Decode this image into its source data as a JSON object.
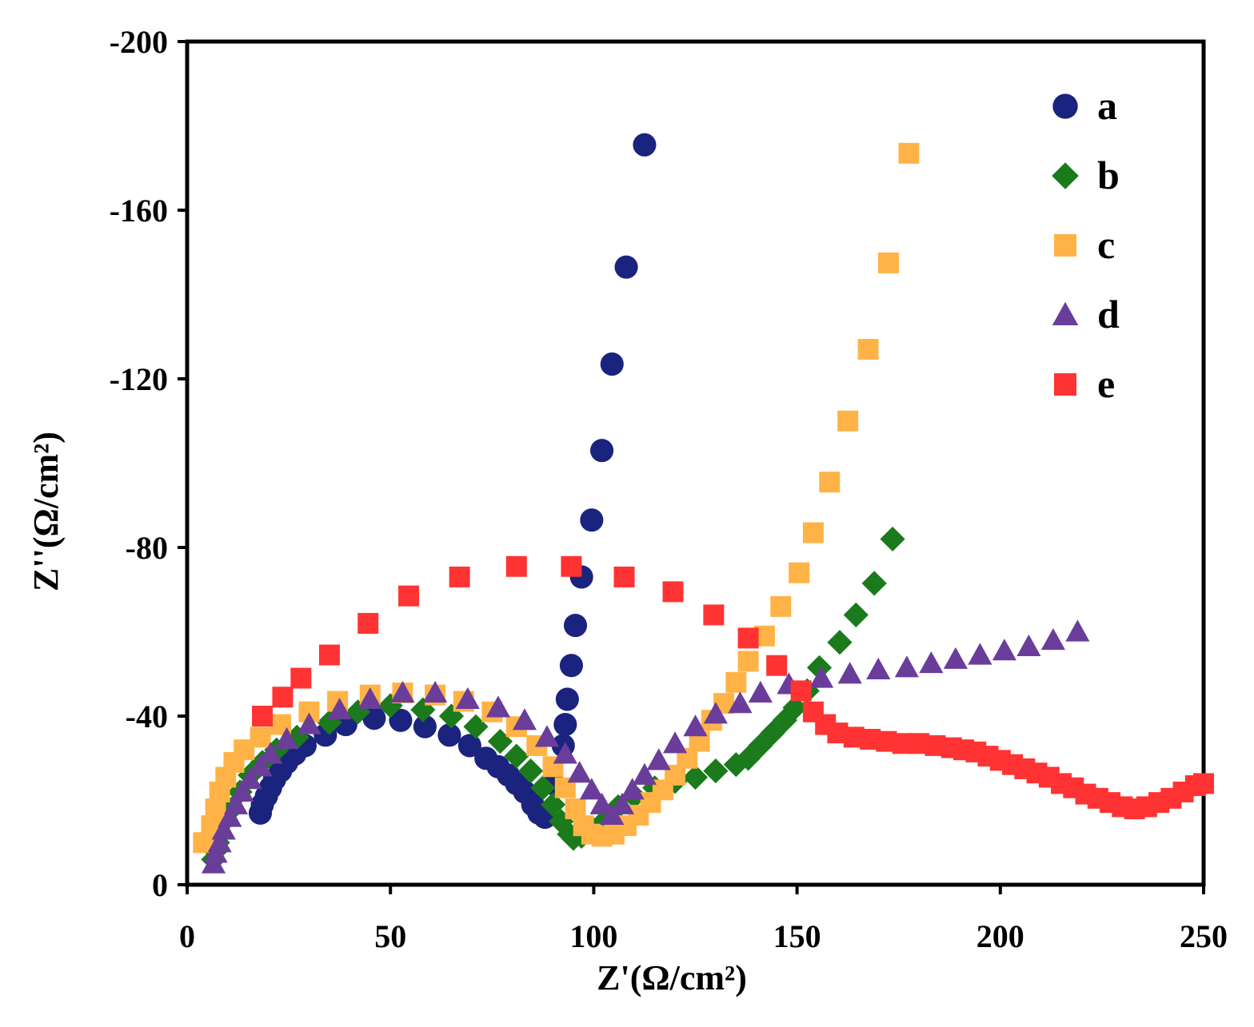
{
  "chart_data": {
    "type": "scatter",
    "title": "",
    "xlabel": "Z'(Ω/cm²)",
    "ylabel": "Z''(Ω/cm²)",
    "xlim": [
      0,
      250
    ],
    "ylim": [
      0,
      -200
    ],
    "xticks": [
      0,
      50,
      100,
      150,
      200,
      250
    ],
    "yticks": [
      0,
      -40,
      -80,
      -120,
      -160,
      -200
    ],
    "xtick_labels": [
      "0",
      "50",
      "100",
      "150",
      "200",
      "250"
    ],
    "ytick_labels": [
      "0",
      "-40",
      "-80",
      "-120",
      "-160",
      "-200"
    ],
    "grid": false,
    "legend_position": "top-right",
    "series": [
      {
        "name": "a",
        "marker": "circle",
        "color": "#1a237e",
        "points": [
          [
            18,
            -17
          ],
          [
            18.5,
            -19
          ],
          [
            19.5,
            -21
          ],
          [
            20.5,
            -23
          ],
          [
            21.5,
            -25
          ],
          [
            23,
            -27
          ],
          [
            24.5,
            -29
          ],
          [
            26.5,
            -31
          ],
          [
            29,
            -33
          ],
          [
            34,
            -35.5
          ],
          [
            39,
            -38
          ],
          [
            46,
            -39.5
          ],
          [
            52.5,
            -39
          ],
          [
            58.5,
            -37.5
          ],
          [
            64.5,
            -35.5
          ],
          [
            69.5,
            -33
          ],
          [
            73.5,
            -30
          ],
          [
            76.5,
            -28
          ],
          [
            79,
            -26
          ],
          [
            81,
            -24
          ],
          [
            83,
            -22
          ],
          [
            85,
            -19
          ],
          [
            86.5,
            -17
          ],
          [
            88,
            -16
          ],
          [
            90,
            -24
          ],
          [
            92.5,
            -33
          ],
          [
            93,
            -38
          ],
          [
            93.5,
            -44
          ],
          [
            94.5,
            -52
          ],
          [
            95.5,
            -61.5
          ],
          [
            97,
            -73
          ],
          [
            99.5,
            -86.5
          ],
          [
            102,
            -103
          ],
          [
            104.5,
            -123.5
          ],
          [
            108,
            -146.5
          ],
          [
            112.5,
            -175.5
          ]
        ]
      },
      {
        "name": "b",
        "marker": "diamond",
        "color": "#1b7a1b",
        "points": [
          [
            6.5,
            -6
          ],
          [
            7,
            -8
          ],
          [
            7.5,
            -10
          ],
          [
            8,
            -12
          ],
          [
            9,
            -15
          ],
          [
            11,
            -18
          ],
          [
            13,
            -22
          ],
          [
            15.5,
            -26
          ],
          [
            18.5,
            -29
          ],
          [
            22,
            -32
          ],
          [
            27,
            -35
          ],
          [
            35,
            -38.5
          ],
          [
            42,
            -41
          ],
          [
            50,
            -42.5
          ],
          [
            58,
            -41.5
          ],
          [
            65,
            -40
          ],
          [
            71,
            -37.5
          ],
          [
            77,
            -34
          ],
          [
            81,
            -30.5
          ],
          [
            84.5,
            -27
          ],
          [
            87.5,
            -23
          ],
          [
            90,
            -19
          ],
          [
            92,
            -15
          ],
          [
            94,
            -12
          ],
          [
            95,
            -11
          ],
          [
            97,
            -11.5
          ],
          [
            100,
            -13
          ],
          [
            103,
            -15.5
          ],
          [
            106,
            -18.5
          ],
          [
            110,
            -21
          ],
          [
            115,
            -23
          ],
          [
            120,
            -24.5
          ],
          [
            125,
            -25.5
          ],
          [
            130,
            -27
          ],
          [
            135,
            -28.5
          ],
          [
            138,
            -30
          ],
          [
            141,
            -33
          ],
          [
            144,
            -36
          ],
          [
            147,
            -39
          ],
          [
            149.5,
            -42
          ],
          [
            152.5,
            -46
          ],
          [
            155.5,
            -51.5
          ],
          [
            160.5,
            -57.5
          ],
          [
            164.5,
            -64
          ],
          [
            169,
            -71.5
          ],
          [
            173.5,
            -82
          ]
        ]
      },
      {
        "name": "c",
        "marker": "square",
        "color": "#ffb347",
        "points": [
          [
            4,
            -10
          ],
          [
            6,
            -14
          ],
          [
            7,
            -18
          ],
          [
            8,
            -22
          ],
          [
            9.5,
            -25.5
          ],
          [
            11.5,
            -29
          ],
          [
            14,
            -32
          ],
          [
            18,
            -35
          ],
          [
            23,
            -38
          ],
          [
            30,
            -41
          ],
          [
            37,
            -43.5
          ],
          [
            45,
            -45
          ],
          [
            53,
            -45.5
          ],
          [
            61,
            -45
          ],
          [
            68,
            -43.5
          ],
          [
            75,
            -41
          ],
          [
            81,
            -37.5
          ],
          [
            86,
            -33
          ],
          [
            90,
            -28
          ],
          [
            93,
            -23
          ],
          [
            95.5,
            -18
          ],
          [
            97.5,
            -14
          ],
          [
            99.5,
            -12
          ],
          [
            102,
            -11.5
          ],
          [
            105,
            -12
          ],
          [
            108,
            -14
          ],
          [
            111,
            -16.5
          ],
          [
            114,
            -19.5
          ],
          [
            117,
            -22.5
          ],
          [
            120,
            -26
          ],
          [
            123,
            -30
          ],
          [
            126,
            -34
          ],
          [
            129,
            -39
          ],
          [
            132,
            -43
          ],
          [
            135,
            -48
          ],
          [
            138,
            -53
          ],
          [
            142,
            -59
          ],
          [
            146,
            -66
          ],
          [
            150.5,
            -74
          ],
          [
            154,
            -83.5
          ],
          [
            158,
            -95.5
          ],
          [
            162.5,
            -110
          ],
          [
            167.5,
            -127
          ],
          [
            172.5,
            -147.5
          ],
          [
            177.5,
            -173.5
          ]
        ]
      },
      {
        "name": "d",
        "marker": "triangle",
        "color": "#6a3d9a",
        "points": [
          [
            6.5,
            -5
          ],
          [
            7,
            -7.5
          ],
          [
            8,
            -10
          ],
          [
            9,
            -13
          ],
          [
            10.5,
            -16
          ],
          [
            12,
            -19
          ],
          [
            13.5,
            -22
          ],
          [
            15.5,
            -25
          ],
          [
            18,
            -28
          ],
          [
            20.5,
            -31
          ],
          [
            24.5,
            -34.5
          ],
          [
            30,
            -38
          ],
          [
            37.5,
            -41.5
          ],
          [
            45,
            -44
          ],
          [
            53,
            -45.5
          ],
          [
            61,
            -45.5
          ],
          [
            69,
            -44
          ],
          [
            76.5,
            -42
          ],
          [
            83,
            -39
          ],
          [
            88.5,
            -35
          ],
          [
            93,
            -31
          ],
          [
            96.5,
            -26.5
          ],
          [
            99.5,
            -22.5
          ],
          [
            102,
            -19
          ],
          [
            104.5,
            -16.5
          ],
          [
            107,
            -19
          ],
          [
            109.5,
            -22.5
          ],
          [
            112.5,
            -26
          ],
          [
            116,
            -29.5
          ],
          [
            120,
            -33.5
          ],
          [
            125,
            -37.5
          ],
          [
            130,
            -40.5
          ],
          [
            136,
            -43
          ],
          [
            141,
            -45.5
          ],
          [
            148,
            -47.5
          ],
          [
            156,
            -49
          ],
          [
            163,
            -50
          ],
          [
            170,
            -51
          ],
          [
            177,
            -51.5
          ],
          [
            183,
            -52.5
          ],
          [
            189,
            -53.5
          ],
          [
            195,
            -54.5
          ],
          [
            201,
            -55.5
          ],
          [
            207,
            -56.5
          ],
          [
            213,
            -58
          ],
          [
            219,
            -60
          ]
        ]
      },
      {
        "name": "e",
        "marker": "square",
        "color": "#ff3333",
        "points": [
          [
            18.5,
            -40
          ],
          [
            23.5,
            -44.5
          ],
          [
            28,
            -49
          ],
          [
            35,
            -54.5
          ],
          [
            44.5,
            -62
          ],
          [
            54.5,
            -68.5
          ],
          [
            67,
            -73
          ],
          [
            81,
            -75.5
          ],
          [
            94.5,
            -75.5
          ],
          [
            107.5,
            -73
          ],
          [
            119.5,
            -69.5
          ],
          [
            129.5,
            -64
          ],
          [
            138,
            -58.5
          ],
          [
            145,
            -52
          ],
          [
            151,
            -46
          ],
          [
            154,
            -41
          ],
          [
            157,
            -38
          ],
          [
            160,
            -36
          ],
          [
            164,
            -35
          ],
          [
            168,
            -34.5
          ],
          [
            172,
            -34
          ],
          [
            176,
            -33.5
          ],
          [
            180,
            -33.5
          ],
          [
            184,
            -33
          ],
          [
            188,
            -32.5
          ],
          [
            191,
            -32
          ],
          [
            194,
            -31.5
          ],
          [
            197,
            -30.5
          ],
          [
            200,
            -29.5
          ],
          [
            203,
            -28.5
          ],
          [
            206,
            -27.5
          ],
          [
            209,
            -26.5
          ],
          [
            212,
            -25.5
          ],
          [
            215,
            -24
          ],
          [
            218,
            -23
          ],
          [
            221,
            -21.5
          ],
          [
            224,
            -20.5
          ],
          [
            227,
            -19.5
          ],
          [
            230,
            -18.5
          ],
          [
            233,
            -18
          ],
          [
            236,
            -18.5
          ],
          [
            239,
            -19.5
          ],
          [
            242,
            -20.5
          ],
          [
            245,
            -22
          ],
          [
            248,
            -23.5
          ],
          [
            250,
            -24
          ]
        ]
      }
    ]
  }
}
